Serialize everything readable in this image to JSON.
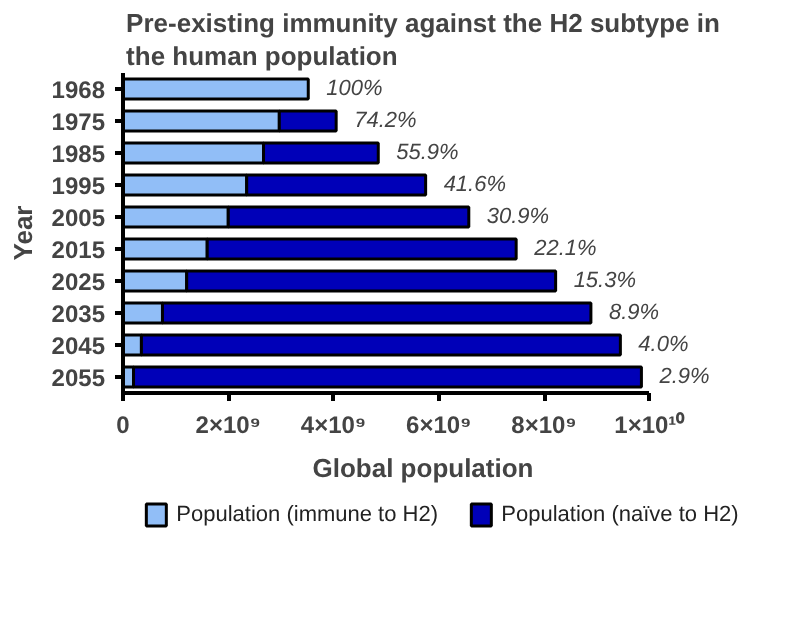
{
  "chart_data": {
    "type": "bar",
    "orientation": "horizontal",
    "stacked": true,
    "title": "Pre-existing immunity against the H2 subtype in the human population",
    "xlabel": "Global population",
    "ylabel": "Year",
    "categories": [
      "1968",
      "1975",
      "1985",
      "1995",
      "2005",
      "2015",
      "2025",
      "2035",
      "2045",
      "2055"
    ],
    "series": [
      {
        "name": "Population (immune to H2)",
        "color": "#91bef7",
        "values": [
          3520000000.0,
          2970000000.0,
          2670000000.0,
          2350000000.0,
          2000000000.0,
          1600000000.0,
          1210000000.0,
          750000000.0,
          350000000.0,
          200000000.0
        ]
      },
      {
        "name": "Population (naïve to H2)",
        "color": "#0000b8",
        "values": [
          0,
          1080000000.0,
          2180000000.0,
          3400000000.0,
          4570000000.0,
          5870000000.0,
          7010000000.0,
          8140000000.0,
          9100000000.0,
          9650000000.0
        ]
      }
    ],
    "annotations": [
      {
        "text": "100%",
        "x": 3520000000.0,
        "y": "1968"
      },
      {
        "text": "74.2%",
        "x": 4050000000.0,
        "y": "1975"
      },
      {
        "text": "55.9%",
        "x": 4850000000.0,
        "y": "1985"
      },
      {
        "text": "41.6%",
        "x": 5750000000.0,
        "y": "1995"
      },
      {
        "text": "30.9%",
        "x": 6570000000.0,
        "y": "2005"
      },
      {
        "text": "22.1%",
        "x": 7470000000.0,
        "y": "2015"
      },
      {
        "text": "15.3%",
        "x": 8220000000.0,
        "y": "2025"
      },
      {
        "text": "8.9%",
        "x": 8890000000.0,
        "y": "2035"
      },
      {
        "text": "4.0%",
        "x": 9450000000.0,
        "y": "2045"
      },
      {
        "text": "2.9%",
        "x": 9850000000.0,
        "y": "2055"
      }
    ],
    "xlim": [
      0,
      10000000000
    ],
    "xticks": [
      0,
      {
        "value": 2000000000,
        "label": "2×10⁹"
      },
      {
        "value": 4000000000,
        "label": "4×10⁹"
      },
      {
        "value": 6000000000,
        "label": "6×10⁹"
      },
      {
        "value": 8000000000,
        "label": "8×10⁹"
      },
      {
        "value": 10000000000,
        "label": "1×10¹⁰"
      }
    ],
    "grid": false,
    "legend": "bottom"
  }
}
